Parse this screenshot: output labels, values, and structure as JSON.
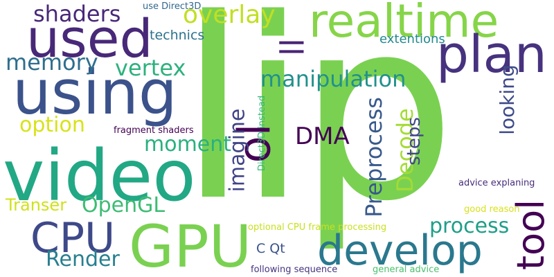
{
  "words": [
    {
      "text": "lip",
      "color": "#7ad151"
    },
    {
      "text": "video",
      "color": "#22a884"
    },
    {
      "text": "using",
      "color": "#3b528b"
    },
    {
      "text": "used",
      "color": "#482878"
    },
    {
      "text": "GPU",
      "color": "#7ad151"
    },
    {
      "text": "realtime",
      "color": "#86d549"
    },
    {
      "text": "develop",
      "color": "#2a788e"
    },
    {
      "text": "CPU",
      "color": "#3e4989"
    },
    {
      "text": "plan",
      "color": "#46327e"
    },
    {
      "text": "ol",
      "color": "#440154"
    },
    {
      "text": "tool",
      "color": "#440154"
    },
    {
      "text": "ll",
      "color": "#482475"
    },
    {
      "text": "overlay",
      "color": "#c2df23"
    },
    {
      "text": "shaders",
      "color": "#482878"
    },
    {
      "text": "memory",
      "color": "#2e6e8e"
    },
    {
      "text": "vertex",
      "color": "#2cb17e"
    },
    {
      "text": "manipulation",
      "color": "#21918c"
    },
    {
      "text": "option",
      "color": "#d8e219"
    },
    {
      "text": "moment",
      "color": "#2ab07f"
    },
    {
      "text": "OpenGL",
      "color": "#3dbc74"
    },
    {
      "text": "DMA",
      "color": "#440154"
    },
    {
      "text": "process",
      "color": "#1f9e89"
    },
    {
      "text": "Render",
      "color": "#277f8e"
    },
    {
      "text": "Transer",
      "color": "#d0e11c"
    },
    {
      "text": "imagine",
      "color": "#414487"
    },
    {
      "text": "Preprocess",
      "color": "#38598c"
    },
    {
      "text": "Decode",
      "color": "#a5db36"
    },
    {
      "text": "steps",
      "color": "#404688"
    },
    {
      "text": "looking",
      "color": "#3e4a89"
    },
    {
      "text": "technics",
      "color": "#2c728e"
    },
    {
      "text": "extentions",
      "color": "#23898e"
    },
    {
      "text": "use Direct3D",
      "color": "#31688e"
    },
    {
      "text": "fragment shaders",
      "color": "#440154"
    },
    {
      "text": "Direct3D instead",
      "color": "#35b779"
    },
    {
      "text": "C Qt",
      "color": "#3b528b"
    },
    {
      "text": "optional CPU frame processing",
      "color": "#c8e020"
    },
    {
      "text": "following sequence",
      "color": "#46337e"
    },
    {
      "text": "general advice",
      "color": "#4ac16d"
    },
    {
      "text": "advice explaning",
      "color": "#472d7b"
    },
    {
      "text": "good reason",
      "color": "#d8e219"
    }
  ]
}
